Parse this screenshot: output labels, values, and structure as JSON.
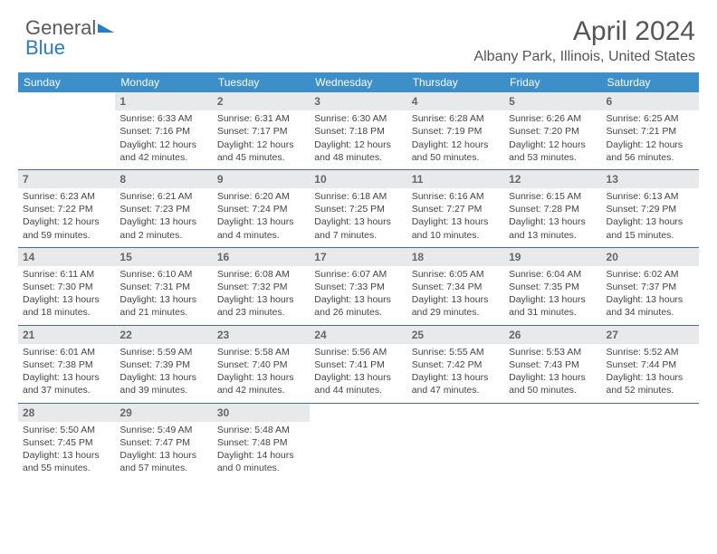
{
  "logo": {
    "line1": "General",
    "line2": "Blue"
  },
  "header": {
    "title": "April 2024",
    "location": "Albany Park, Illinois, United States"
  },
  "styling": {
    "header_bg": "#3d8fc9",
    "header_fg": "#ffffff",
    "row_border": "#3d6fa9",
    "daynum_shade_bg": "#e7e9ea",
    "title_fontsize": 30,
    "location_fontsize": 16,
    "cell_fontsize": 10.5
  },
  "calendar": {
    "day_names": [
      "Sunday",
      "Monday",
      "Tuesday",
      "Wednesday",
      "Thursday",
      "Friday",
      "Saturday"
    ],
    "weeks": [
      [
        null,
        {
          "n": "1",
          "sr": "6:33 AM",
          "ss": "7:16 PM",
          "dl": "12 hours and 42 minutes."
        },
        {
          "n": "2",
          "sr": "6:31 AM",
          "ss": "7:17 PM",
          "dl": "12 hours and 45 minutes."
        },
        {
          "n": "3",
          "sr": "6:30 AM",
          "ss": "7:18 PM",
          "dl": "12 hours and 48 minutes."
        },
        {
          "n": "4",
          "sr": "6:28 AM",
          "ss": "7:19 PM",
          "dl": "12 hours and 50 minutes."
        },
        {
          "n": "5",
          "sr": "6:26 AM",
          "ss": "7:20 PM",
          "dl": "12 hours and 53 minutes."
        },
        {
          "n": "6",
          "sr": "6:25 AM",
          "ss": "7:21 PM",
          "dl": "12 hours and 56 minutes."
        }
      ],
      [
        {
          "n": "7",
          "sr": "6:23 AM",
          "ss": "7:22 PM",
          "dl": "12 hours and 59 minutes."
        },
        {
          "n": "8",
          "sr": "6:21 AM",
          "ss": "7:23 PM",
          "dl": "13 hours and 2 minutes."
        },
        {
          "n": "9",
          "sr": "6:20 AM",
          "ss": "7:24 PM",
          "dl": "13 hours and 4 minutes."
        },
        {
          "n": "10",
          "sr": "6:18 AM",
          "ss": "7:25 PM",
          "dl": "13 hours and 7 minutes."
        },
        {
          "n": "11",
          "sr": "6:16 AM",
          "ss": "7:27 PM",
          "dl": "13 hours and 10 minutes."
        },
        {
          "n": "12",
          "sr": "6:15 AM",
          "ss": "7:28 PM",
          "dl": "13 hours and 13 minutes."
        },
        {
          "n": "13",
          "sr": "6:13 AM",
          "ss": "7:29 PM",
          "dl": "13 hours and 15 minutes."
        }
      ],
      [
        {
          "n": "14",
          "sr": "6:11 AM",
          "ss": "7:30 PM",
          "dl": "13 hours and 18 minutes."
        },
        {
          "n": "15",
          "sr": "6:10 AM",
          "ss": "7:31 PM",
          "dl": "13 hours and 21 minutes."
        },
        {
          "n": "16",
          "sr": "6:08 AM",
          "ss": "7:32 PM",
          "dl": "13 hours and 23 minutes."
        },
        {
          "n": "17",
          "sr": "6:07 AM",
          "ss": "7:33 PM",
          "dl": "13 hours and 26 minutes."
        },
        {
          "n": "18",
          "sr": "6:05 AM",
          "ss": "7:34 PM",
          "dl": "13 hours and 29 minutes."
        },
        {
          "n": "19",
          "sr": "6:04 AM",
          "ss": "7:35 PM",
          "dl": "13 hours and 31 minutes."
        },
        {
          "n": "20",
          "sr": "6:02 AM",
          "ss": "7:37 PM",
          "dl": "13 hours and 34 minutes."
        }
      ],
      [
        {
          "n": "21",
          "sr": "6:01 AM",
          "ss": "7:38 PM",
          "dl": "13 hours and 37 minutes."
        },
        {
          "n": "22",
          "sr": "5:59 AM",
          "ss": "7:39 PM",
          "dl": "13 hours and 39 minutes."
        },
        {
          "n": "23",
          "sr": "5:58 AM",
          "ss": "7:40 PM",
          "dl": "13 hours and 42 minutes."
        },
        {
          "n": "24",
          "sr": "5:56 AM",
          "ss": "7:41 PM",
          "dl": "13 hours and 44 minutes."
        },
        {
          "n": "25",
          "sr": "5:55 AM",
          "ss": "7:42 PM",
          "dl": "13 hours and 47 minutes."
        },
        {
          "n": "26",
          "sr": "5:53 AM",
          "ss": "7:43 PM",
          "dl": "13 hours and 50 minutes."
        },
        {
          "n": "27",
          "sr": "5:52 AM",
          "ss": "7:44 PM",
          "dl": "13 hours and 52 minutes."
        }
      ],
      [
        {
          "n": "28",
          "sr": "5:50 AM",
          "ss": "7:45 PM",
          "dl": "13 hours and 55 minutes."
        },
        {
          "n": "29",
          "sr": "5:49 AM",
          "ss": "7:47 PM",
          "dl": "13 hours and 57 minutes."
        },
        {
          "n": "30",
          "sr": "5:48 AM",
          "ss": "7:48 PM",
          "dl": "14 hours and 0 minutes."
        },
        null,
        null,
        null,
        null
      ]
    ],
    "labels": {
      "sunrise": "Sunrise:",
      "sunset": "Sunset:",
      "daylight": "Daylight:"
    }
  }
}
